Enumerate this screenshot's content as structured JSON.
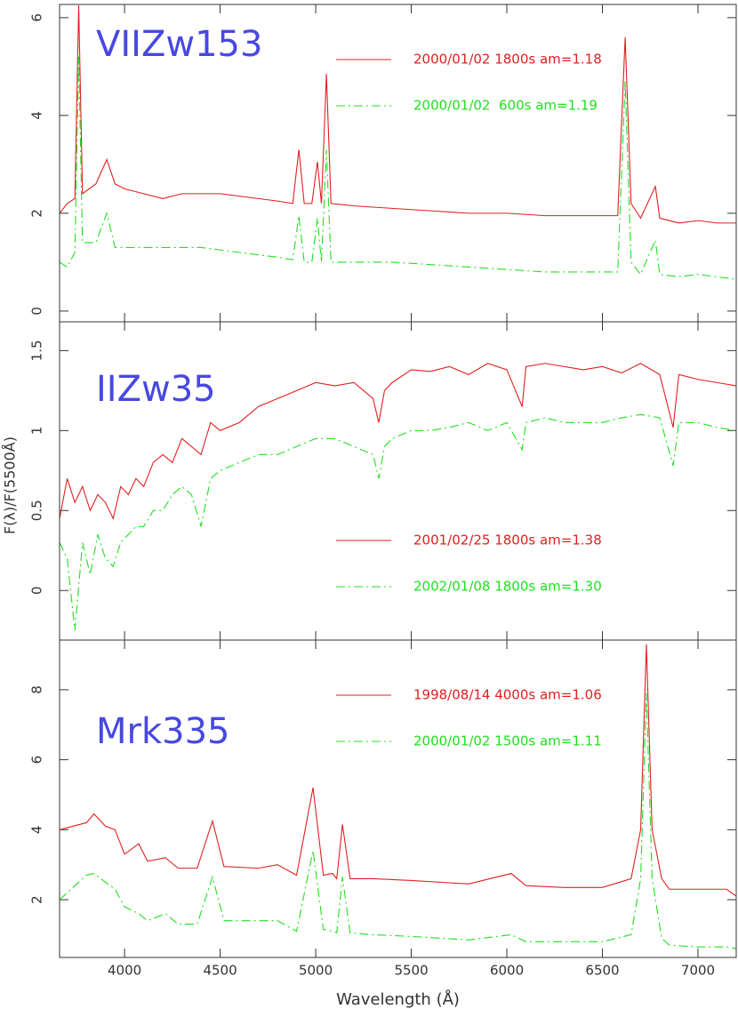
{
  "chart_data": [
    {
      "type": "line",
      "label": "VIIZw153",
      "xlim": [
        3660,
        7200
      ],
      "xticks": [
        4000,
        4500,
        5000,
        5500,
        6000,
        6500,
        7000
      ],
      "show_xtick_labels": false,
      "ylim": [
        -0.22,
        6.27
      ],
      "yticks": [
        0,
        2,
        4,
        6
      ],
      "legend": "upper right",
      "x": [
        3660,
        3700,
        3740,
        3760,
        3780,
        3850,
        3907,
        3950,
        4000,
        4100,
        4200,
        4300,
        4400,
        4500,
        4600,
        4700,
        4800,
        4880,
        4912,
        4940,
        4980,
        5009,
        5030,
        5056,
        5080,
        5200,
        5400,
        5600,
        5800,
        6000,
        6200,
        6400,
        6580,
        6619,
        6650,
        6700,
        6777,
        6800,
        6900,
        7000,
        7100,
        7200
      ],
      "series": [
        {
          "name": "2000/01/02 1800s am=1.18",
          "color": "#e02020",
          "linestyle": "solid",
          "values": [
            2.0,
            2.2,
            2.3,
            6.25,
            2.4,
            2.6,
            3.1,
            2.6,
            2.5,
            2.4,
            2.3,
            2.4,
            2.4,
            2.4,
            2.35,
            2.3,
            2.25,
            2.2,
            3.3,
            2.2,
            2.2,
            3.05,
            2.2,
            4.85,
            2.2,
            2.15,
            2.1,
            2.05,
            2.0,
            2.0,
            1.95,
            1.95,
            1.95,
            5.6,
            2.2,
            1.9,
            2.55,
            1.9,
            1.8,
            1.85,
            1.8,
            1.8
          ]
        },
        {
          "name": "2000/01/02  600s am=1.19",
          "color": "#20e020",
          "linestyle": "dashdot",
          "values": [
            1.0,
            0.9,
            1.2,
            5.2,
            1.4,
            1.4,
            2.0,
            1.3,
            1.3,
            1.3,
            1.3,
            1.3,
            1.3,
            1.25,
            1.2,
            1.15,
            1.1,
            1.05,
            1.95,
            1.0,
            1.0,
            1.9,
            1.0,
            3.3,
            1.0,
            1.0,
            1.0,
            0.95,
            0.9,
            0.85,
            0.8,
            0.8,
            0.8,
            4.7,
            1.0,
            0.75,
            1.45,
            0.75,
            0.7,
            0.75,
            0.7,
            0.65
          ]
        }
      ]
    },
    {
      "type": "line",
      "label": "IIZw35",
      "y_label": "F(λ)/F(5500Å)",
      "xlim": [
        3660,
        7200
      ],
      "xticks": [
        4000,
        4500,
        5000,
        5500,
        6000,
        6500,
        7000
      ],
      "show_xtick_labels": false,
      "ylim": [
        -0.31,
        1.68
      ],
      "yticks": [
        0,
        0.5,
        1,
        1.5
      ],
      "legend": "lower right",
      "x": [
        3660,
        3700,
        3740,
        3780,
        3820,
        3860,
        3900,
        3940,
        3980,
        4020,
        4060,
        4100,
        4150,
        4200,
        4250,
        4300,
        4350,
        4400,
        4450,
        4500,
        4600,
        4700,
        4800,
        4900,
        5000,
        5100,
        5200,
        5300,
        5330,
        5360,
        5400,
        5500,
        5600,
        5700,
        5800,
        5900,
        6000,
        6080,
        6100,
        6200,
        6300,
        6400,
        6500,
        6600,
        6700,
        6800,
        6870,
        6900,
        7000,
        7100,
        7200
      ],
      "series": [
        {
          "name": "2001/02/25 1800s am=1.38",
          "color": "#e02020",
          "linestyle": "solid",
          "values": [
            0.45,
            0.7,
            0.55,
            0.65,
            0.5,
            0.6,
            0.55,
            0.45,
            0.65,
            0.6,
            0.7,
            0.65,
            0.8,
            0.85,
            0.8,
            0.95,
            0.9,
            0.85,
            1.05,
            1.0,
            1.05,
            1.15,
            1.2,
            1.25,
            1.3,
            1.28,
            1.3,
            1.2,
            1.05,
            1.25,
            1.3,
            1.38,
            1.37,
            1.4,
            1.35,
            1.42,
            1.38,
            1.15,
            1.4,
            1.42,
            1.4,
            1.38,
            1.4,
            1.36,
            1.42,
            1.35,
            1.02,
            1.35,
            1.32,
            1.3,
            1.28
          ]
        },
        {
          "name": "2002/01/08 1800s am=1.30",
          "color": "#20e020",
          "linestyle": "dashdot",
          "values": [
            0.3,
            0.2,
            -0.25,
            0.3,
            0.1,
            0.35,
            0.2,
            0.15,
            0.3,
            0.35,
            0.4,
            0.4,
            0.5,
            0.5,
            0.6,
            0.65,
            0.6,
            0.4,
            0.7,
            0.75,
            0.8,
            0.85,
            0.85,
            0.9,
            0.95,
            0.95,
            0.9,
            0.85,
            0.7,
            0.9,
            0.95,
            1.0,
            1.0,
            1.02,
            1.05,
            1.0,
            1.05,
            0.88,
            1.05,
            1.08,
            1.05,
            1.05,
            1.05,
            1.08,
            1.1,
            1.08,
            0.78,
            1.05,
            1.05,
            1.02,
            1.0
          ]
        }
      ]
    },
    {
      "type": "line",
      "label": "Mrk335",
      "x_label": "Wavelength (Å)",
      "xlim": [
        3660,
        7200
      ],
      "xticks": [
        4000,
        4500,
        5000,
        5500,
        6000,
        6500,
        7000
      ],
      "show_xtick_labels": true,
      "ylim": [
        0.35,
        9.42
      ],
      "yticks": [
        2,
        4,
        6,
        8
      ],
      "legend": "upper right",
      "x": [
        3660,
        3800,
        3840,
        3900,
        3950,
        4000,
        4074,
        4120,
        4214,
        4280,
        4380,
        4460,
        4520,
        4700,
        4800,
        4900,
        4986,
        5040,
        5088,
        5110,
        5140,
        5180,
        5300,
        5500,
        5800,
        6023,
        6100,
        6300,
        6500,
        6650,
        6700,
        6730,
        6760,
        6810,
        6850,
        7000,
        7150,
        7200
      ],
      "series": [
        {
          "name": "1998/08/14 4000s am=1.06",
          "color": "#e02020",
          "linestyle": "solid",
          "values": [
            4.0,
            4.2,
            4.45,
            4.1,
            4.0,
            3.3,
            3.6,
            3.1,
            3.2,
            2.9,
            2.9,
            4.25,
            2.95,
            2.9,
            3.0,
            2.7,
            5.2,
            2.7,
            2.75,
            2.6,
            4.15,
            2.6,
            2.6,
            2.55,
            2.45,
            2.75,
            2.4,
            2.35,
            2.35,
            2.6,
            4.0,
            9.3,
            4.0,
            2.6,
            2.3,
            2.3,
            2.3,
            2.1
          ]
        },
        {
          "name": "2000/01/02 1500s am=1.11",
          "color": "#20e020",
          "linestyle": "dashdot",
          "values": [
            2.0,
            2.7,
            2.75,
            2.5,
            2.3,
            1.8,
            1.6,
            1.4,
            1.6,
            1.3,
            1.3,
            2.65,
            1.4,
            1.4,
            1.4,
            1.1,
            3.4,
            1.15,
            1.1,
            1.05,
            2.65,
            1.05,
            1.0,
            0.95,
            0.85,
            1.0,
            0.8,
            0.8,
            0.8,
            1.0,
            2.6,
            7.9,
            2.6,
            0.9,
            0.7,
            0.65,
            0.65,
            0.6
          ]
        }
      ]
    }
  ]
}
